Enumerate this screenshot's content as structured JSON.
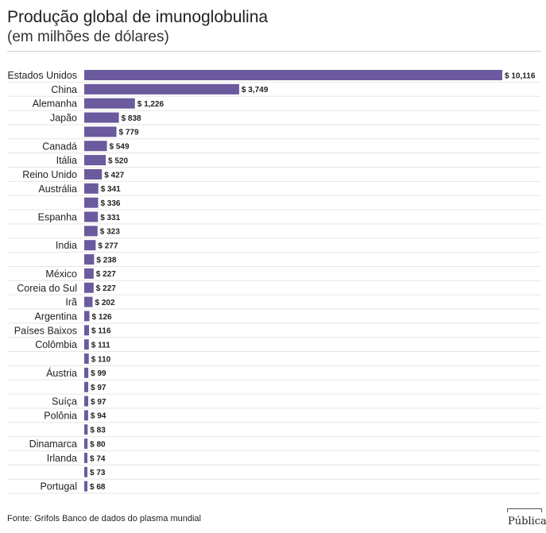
{
  "chart_data": {
    "type": "bar",
    "orientation": "horizontal",
    "title": "Produção global de imunoglobulina",
    "subtitle": "(em milhões de dólares)",
    "categories": [
      "Estados Unidos",
      "China",
      "Alemanha",
      "Japão",
      "",
      "Canadá",
      "Itália",
      "Reino Unido",
      "Austrália",
      "",
      "Espanha",
      "",
      "India",
      "",
      "México",
      "Coreia do Sul",
      "Irã",
      "Argentina",
      "Países Baixos",
      "Colômbia",
      "",
      "Áustria",
      "",
      "Suíça",
      "Polônia",
      "",
      "Dinamarca",
      "Irlanda",
      "",
      "Portugal"
    ],
    "values": [
      10116,
      3749,
      1226,
      838,
      779,
      549,
      520,
      427,
      341,
      336,
      331,
      323,
      277,
      238,
      227,
      227,
      202,
      126,
      116,
      111,
      110,
      99,
      97,
      97,
      94,
      83,
      80,
      74,
      73,
      68
    ],
    "value_labels": [
      "$ 10,116",
      "$ 3,749",
      "$ 1,226",
      "$ 838",
      "$ 779",
      "$ 549",
      "$ 520",
      "$ 427",
      "$ 341",
      "$ 336",
      "$ 331",
      "$ 323",
      "$ 277",
      "$ 238",
      "$ 227",
      "$ 227",
      "$ 202",
      "$ 126",
      "$ 116",
      "$ 111",
      "$ 110",
      "$ 99",
      "$ 97",
      "$ 97",
      "$ 94",
      "$ 83",
      "$ 80",
      "$ 74",
      "$ 73",
      "$ 68"
    ],
    "xlim": [
      0,
      10116
    ],
    "grid": true,
    "bar_color": "#6b5a9e"
  },
  "source": "Fonte: Grifols Banco de dados do plasma mundial",
  "logo": "Pública"
}
